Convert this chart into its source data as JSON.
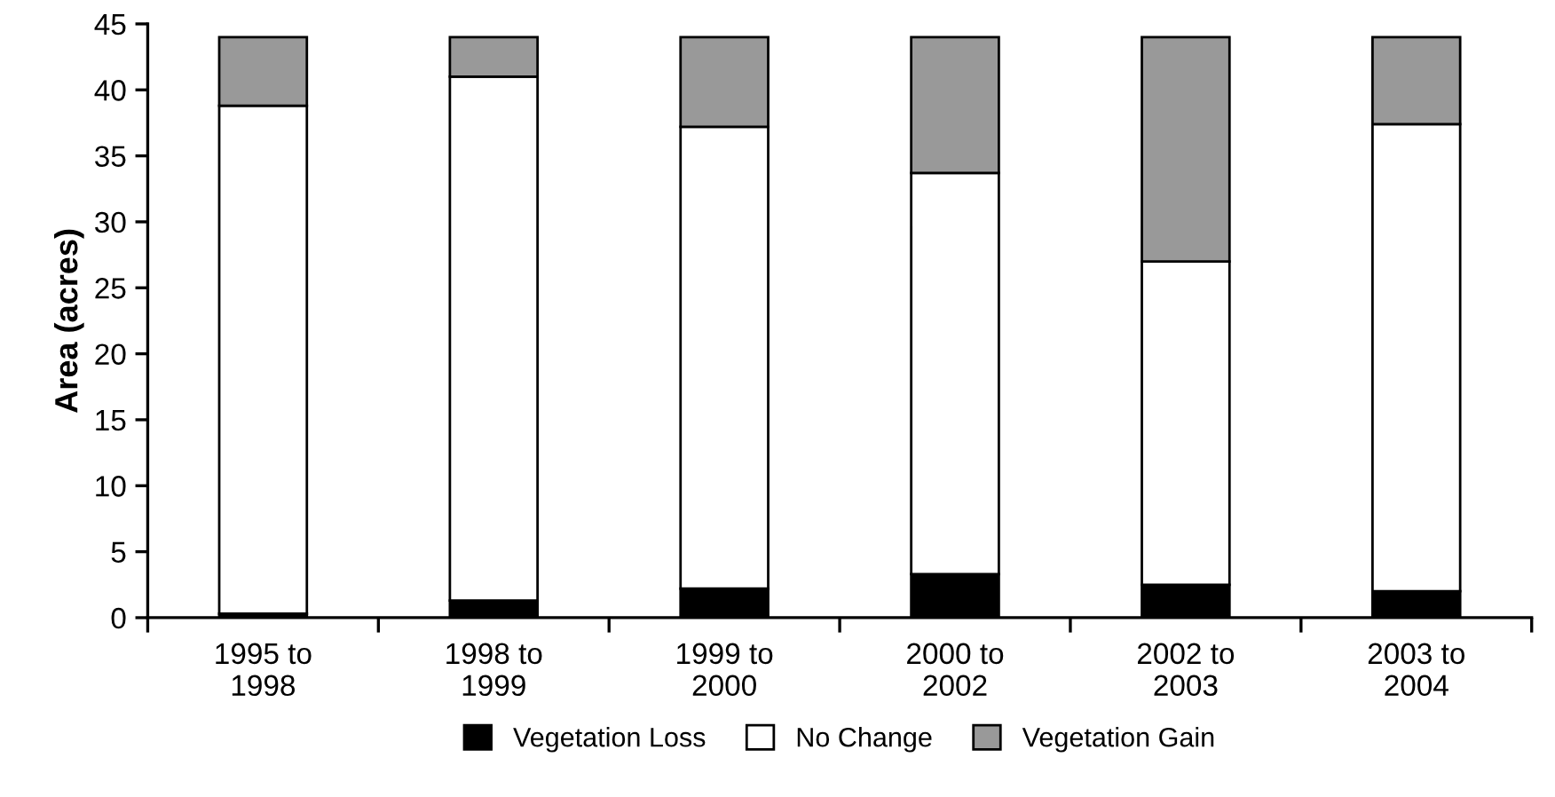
{
  "chart_data": {
    "type": "bar",
    "stacked": true,
    "ylabel": "Area (acres)",
    "categories": [
      "1995 to\n1998",
      "1998 to\n1999",
      "1999 to\n2000",
      "2000 to\n2002",
      "2002 to\n2003",
      "2003 to\n2004"
    ],
    "series": [
      {
        "name": "Vegetation Loss",
        "color": "#000000",
        "values": [
          0.3,
          1.3,
          2.2,
          3.3,
          2.5,
          2.0
        ]
      },
      {
        "name": "No Change",
        "color": "#ffffff",
        "values": [
          38.5,
          39.7,
          35.0,
          30.4,
          24.5,
          35.4
        ]
      },
      {
        "name": "Vegetation Gain",
        "color": "#999999",
        "values": [
          5.2,
          3.0,
          6.8,
          10.3,
          17.0,
          6.6
        ]
      }
    ],
    "ylim": [
      0,
      45
    ],
    "yticks": [
      0,
      5,
      10,
      15,
      20,
      25,
      30,
      35,
      40,
      45
    ],
    "grid": false,
    "legend": "bottom"
  }
}
